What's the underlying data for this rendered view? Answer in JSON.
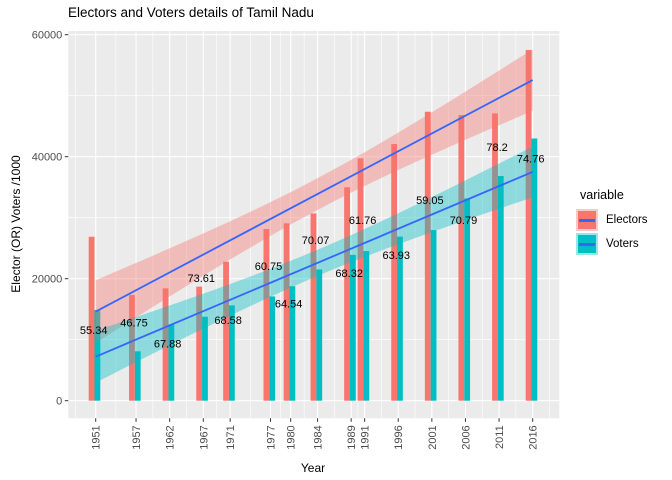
{
  "title": "Electors and Voters details of Tamil Nadu",
  "axes": {
    "x_label": "Year",
    "y_label": "Elector (OR) Voters /1000",
    "x_ticks": [
      "1951",
      "1957",
      "1962",
      "1967",
      "1971",
      "1977",
      "1980",
      "1984",
      "1989",
      "1991",
      "1996",
      "2001",
      "2006",
      "2011",
      "2016"
    ],
    "y_ticks": [
      "0",
      "20000",
      "40000",
      "60000"
    ]
  },
  "legend": {
    "title": "variable",
    "items": [
      {
        "label": "Electors",
        "color": "#F8766D",
        "tint": "#FBC8C4"
      },
      {
        "label": "Voters",
        "color": "#00BFC4",
        "tint": "#99E5E7"
      }
    ]
  },
  "colors": {
    "electors": "#F8766D",
    "voters": "#00BFC4",
    "smooth_line": "#3366FF",
    "panel_bg": "#EBEBEB",
    "grid": "#FFFFFF",
    "tick_mark": "#333333",
    "tick_text": "#4D4D4D",
    "label_text": "#000000",
    "ribbon_alpha": 0.4
  },
  "chart_data": {
    "type": "bar",
    "title": "Electors and Voters details of Tamil Nadu",
    "xlabel": "Year",
    "ylabel": "Elector (OR) Voters /1000",
    "categories": [
      1951,
      1957,
      1962,
      1967,
      1971,
      1977,
      1980,
      1984,
      1989,
      1991,
      1996,
      2001,
      2006,
      2011,
      2016
    ],
    "series": [
      {
        "name": "Electors",
        "color": "#F8766D",
        "values": [
          26880,
          17330,
          18420,
          18700,
          22780,
          28140,
          29080,
          30700,
          34990,
          39730,
          42080,
          47370,
          46830,
          47100,
          57500
        ]
      },
      {
        "name": "Voters",
        "color": "#00BFC4",
        "values": [
          14876,
          8102,
          12504,
          13765,
          15622,
          17095,
          18768,
          21511,
          23905,
          24537,
          26902,
          27972,
          33151,
          36832,
          42987
        ]
      }
    ],
    "point_labels": {
      "text": [
        "55.34",
        "46.75",
        "67.88",
        "73.61",
        "68.58",
        "60.75",
        "64.54",
        "70.07",
        "68.32",
        "61.76",
        "63.93",
        "59.05",
        "70.79",
        "78.2",
        "74.76"
      ],
      "y_positions": [
        11600,
        12850,
        9400,
        20100,
        13230,
        22100,
        15900,
        26340,
        20900,
        29620,
        23880,
        32900,
        29620,
        41630,
        39730
      ]
    },
    "smooth": {
      "x_mean": 1983.933,
      "sxx": 5569,
      "n": 15,
      "electors": {
        "mean_value": 33842,
        "slope_per_year": 584,
        "ci_half_width_mid": 2600
      },
      "voters": {
        "mean_value": 22569,
        "slope_per_year": 466,
        "ci_half_width_mid": 2150
      }
    },
    "ylim": [
      -2900,
      60600
    ],
    "y_major": [
      0,
      20000,
      40000,
      60000
    ],
    "y_minor": [
      10000,
      30000,
      50000
    ],
    "grid": true,
    "legend_position": "right",
    "legend_title": "variable"
  }
}
